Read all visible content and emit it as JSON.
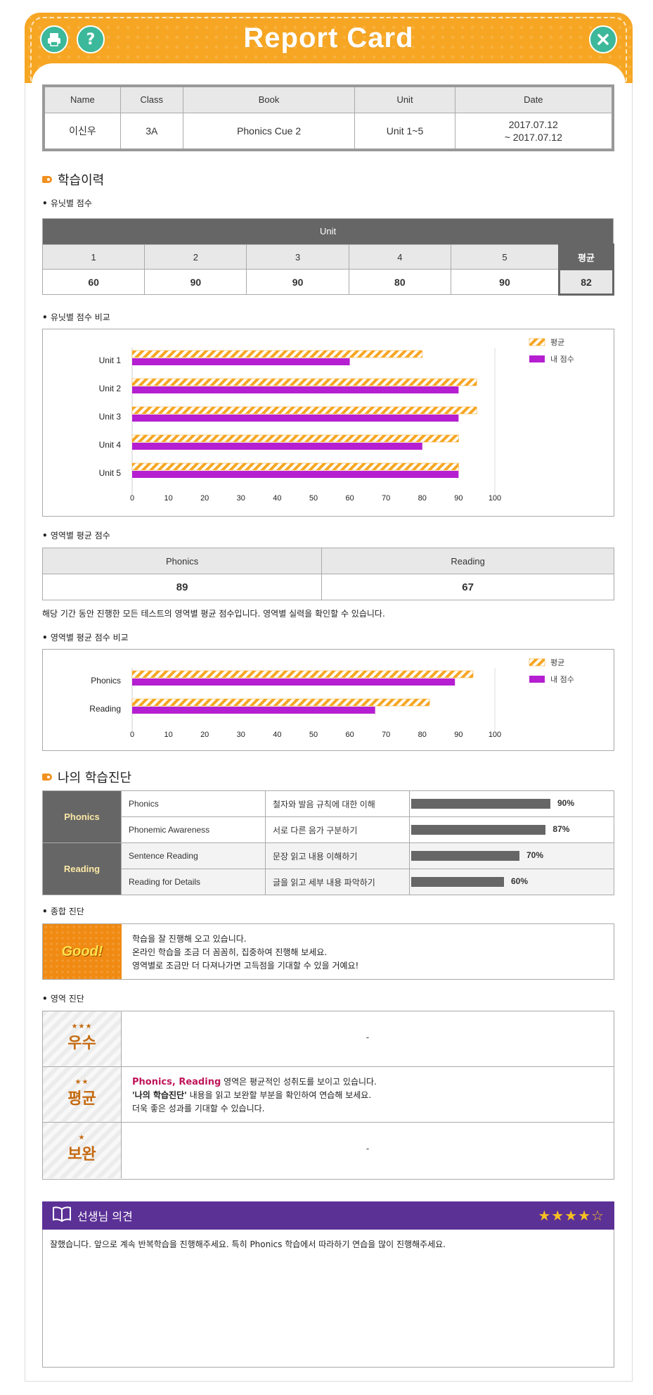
{
  "header": {
    "title": "Report Card",
    "print_icon": "printer-icon",
    "help_icon": "help-icon",
    "close_icon": "close-icon",
    "color": "#f6a623",
    "button_color": "#3cb89a"
  },
  "info": {
    "headers": [
      "Name",
      "Class",
      "Book",
      "Unit",
      "Date"
    ],
    "values": [
      "이신우",
      "3A",
      "Phonics Cue 2",
      "Unit 1~5",
      "2017.07.12",
      "~ 2017.07.12"
    ]
  },
  "history": {
    "title": "학습이력",
    "unit_scores_label": "유닛별 점수",
    "unit_compare_label": "유닛별 점수 비교"
  },
  "unit_table": {
    "header": "Unit",
    "units": [
      "1",
      "2",
      "3",
      "4",
      "5"
    ],
    "avg_label": "평균",
    "scores": [
      "60",
      "90",
      "90",
      "80",
      "90"
    ],
    "avg": "82"
  },
  "legend": {
    "avg": "평균",
    "mine": "내 점수"
  },
  "area": {
    "label": "영역별 평균 점수",
    "compare_label": "영역별 평균 점수 비교",
    "headers": [
      "Phonics",
      "Reading"
    ],
    "scores": [
      "89",
      "67"
    ],
    "note": "해당 기간 동안 진행한 모든 테스트의 영역별 평균 점수입니다. 영역별 실력을 확인할 수 있습니다."
  },
  "chart_data": [
    {
      "type": "bar",
      "orientation": "horizontal",
      "categories": [
        "Unit 1",
        "Unit 2",
        "Unit 3",
        "Unit 4",
        "Unit 5"
      ],
      "series": [
        {
          "name": "평균",
          "values": [
            80,
            95,
            95,
            90,
            90
          ],
          "color": "#f6a623"
        },
        {
          "name": "내 점수",
          "values": [
            60,
            90,
            90,
            80,
            90
          ],
          "color": "#b51fd1"
        }
      ],
      "xlim": [
        0,
        100
      ],
      "xticks": [
        "0",
        "10",
        "20",
        "30",
        "40",
        "50",
        "60",
        "70",
        "80",
        "90",
        "100"
      ],
      "legend": "top-right",
      "grid": false
    },
    {
      "type": "bar",
      "orientation": "horizontal",
      "categories": [
        "Phonics",
        "Reading"
      ],
      "series": [
        {
          "name": "평균",
          "values": [
            94,
            82
          ],
          "color": "#f6a623"
        },
        {
          "name": "내 점수",
          "values": [
            89,
            67
          ],
          "color": "#b51fd1"
        }
      ],
      "xlim": [
        0,
        100
      ],
      "xticks": [
        "0",
        "10",
        "20",
        "30",
        "40",
        "50",
        "60",
        "70",
        "80",
        "90",
        "100"
      ],
      "legend": "top-right",
      "grid": false
    }
  ],
  "diagnosis": {
    "title": "나의 학습진단",
    "rows": [
      {
        "category": "Phonics",
        "item": "Phonics",
        "desc": "철자와 발음 규칙에 대한 이해",
        "pct": 0.9,
        "pct_label": "90%"
      },
      {
        "category": "Phonics",
        "item": "Phonemic Awareness",
        "desc": "서로 다른 음가 구분하기",
        "pct": 0.87,
        "pct_label": "87%"
      },
      {
        "category": "Reading",
        "item": "Sentence Reading",
        "desc": "문장 읽고 내용 이해하기",
        "pct": 0.7,
        "pct_label": "70%"
      },
      {
        "category": "Reading",
        "item": "Reading for Details",
        "desc": "글을 읽고 세부 내용 파악하기",
        "pct": 0.6,
        "pct_label": "60%"
      }
    ],
    "categories": [
      "Phonics",
      "Reading"
    ]
  },
  "overall": {
    "label": "종합 진단",
    "badge": "Good!",
    "lines": [
      "학습을 잘 진행해 오고 있습니다.",
      "온라인 학습을 조금 더 꼼꼼히, 집중하여 진행해 보세요.",
      "영역별로 조금만 더 다져나가면 고득점을 기대할 수 있을 거예요!"
    ]
  },
  "area_diag": {
    "label": "영역 진단",
    "grades": [
      {
        "stars": "★★★",
        "name": "우수",
        "text": "-"
      },
      {
        "stars": "★★",
        "name": "평균",
        "highlight": "Phonics, Reading",
        "line1_rest": " 영역은 평균적인 성취도를 보이고 있습니다.",
        "line2_bold": "'나의 학습진단'",
        "line2_rest": " 내용을 읽고 보완할 부분을 확인하여 연습해 보세요.",
        "line3": "더욱 좋은 성과를 기대할 수 있습니다."
      },
      {
        "stars": "★",
        "name": "보완",
        "text": "-"
      }
    ]
  },
  "teacher": {
    "title": "선생님 의견",
    "book_icon": "book-icon",
    "rating": 4,
    "rating_max": 5,
    "comment": "잘했습니다. 앞으로 계속 반복학습을 진행해주세요. 특히 Phonics 학습에서 따라하기 연습을 많이 진행해주세요."
  }
}
